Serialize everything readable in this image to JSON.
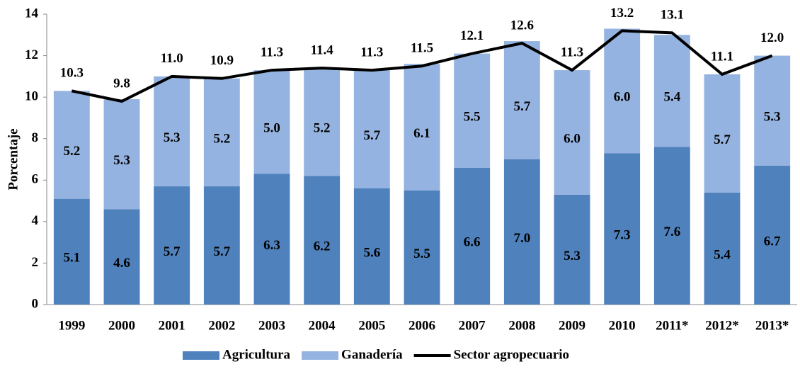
{
  "chart_data": {
    "type": "stacked-bar-line",
    "y_label": "Porcentaje",
    "categories": [
      "1999",
      "2000",
      "2001",
      "2002",
      "2003",
      "2004",
      "2005",
      "2006",
      "2007",
      "2008",
      "2009",
      "2010",
      "2011*",
      "2012*",
      "2013*"
    ],
    "series": [
      {
        "name": "Agricultura",
        "color": "#4f81bd",
        "type": "bar",
        "values": [
          5.1,
          4.6,
          5.7,
          5.7,
          6.3,
          6.2,
          5.6,
          5.5,
          6.6,
          7.0,
          5.3,
          7.3,
          7.6,
          5.4,
          6.7
        ],
        "value_labels": [
          "5.1",
          "4.6",
          "5.7",
          "5.7",
          "6.3",
          "6.2",
          "5.6",
          "5.5",
          "6.6",
          "7.0",
          "5.3",
          "7.3",
          "7.6",
          "5.4",
          "6.7"
        ]
      },
      {
        "name": "Ganadería",
        "color": "#95b3e0",
        "type": "bar",
        "values": [
          5.2,
          5.3,
          5.3,
          5.2,
          5.0,
          5.2,
          5.7,
          6.1,
          5.5,
          5.7,
          6.0,
          6.0,
          5.4,
          5.7,
          5.3
        ],
        "value_labels": [
          "5.2",
          "5.3",
          "5.3",
          "5.2",
          "5.0",
          "5.2",
          "5.7",
          "6.1",
          "5.5",
          "5.7",
          "6.0",
          "6.0",
          "5.4",
          "5.7",
          "5.3"
        ]
      },
      {
        "name": "Sector agropecuario",
        "color": "#000000",
        "type": "line",
        "values": [
          10.3,
          9.8,
          11.0,
          10.9,
          11.3,
          11.4,
          11.3,
          11.5,
          12.1,
          12.6,
          11.3,
          13.2,
          13.1,
          11.1,
          12.0
        ],
        "value_labels": [
          "10.3",
          "9.8",
          "11.0",
          "10.9",
          "11.3",
          "11.4",
          "11.3",
          "11.5",
          "12.1",
          "12.6",
          "11.3",
          "13.2",
          "13.1",
          "11.1",
          "12.0"
        ]
      }
    ],
    "ylim": [
      0,
      14
    ],
    "yticks": [
      0,
      2,
      4,
      6,
      8,
      10,
      12,
      14
    ],
    "grid": false,
    "legend": "bottom"
  }
}
